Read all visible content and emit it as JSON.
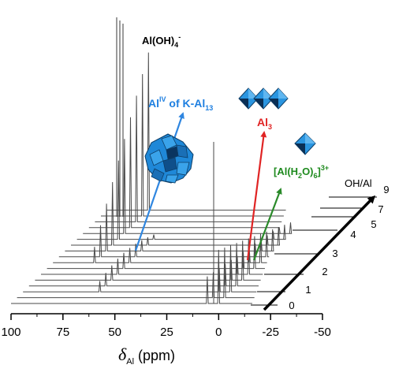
{
  "chart_data": {
    "type": "line",
    "subtype": "stacked-waterfall-nmr-spectra",
    "xlabel": {
      "delta": "δ",
      "subscript": "Al",
      "unit": "(ppm)"
    },
    "xlim": [
      100,
      -50
    ],
    "x_reversed": true,
    "x_ticks": [
      100,
      75,
      50,
      25,
      0,
      -25,
      -50
    ],
    "x_tick_labels": [
      "100",
      "75",
      "50",
      "25",
      "0",
      "-25",
      "-50"
    ],
    "depth_axis_label": "OH/Al",
    "depth_tick_labels": [
      "0",
      "1",
      "2",
      "3",
      "4",
      "5",
      "7",
      "9"
    ],
    "series_count": 17,
    "peaks": [
      {
        "name": "AlOH4",
        "position_ppm": 80.0,
        "present_in_series": [
          0,
          16
        ]
      },
      {
        "name": "AlIV_Al13",
        "position_ppm": 63.0,
        "present_in_series": [
          2,
          11
        ]
      },
      {
        "name": "Al3",
        "position_ppm": 5.5,
        "present_in_series": [
          0,
          12
        ]
      },
      {
        "name": "AlH2O6",
        "position_ppm": 0.0,
        "present_in_series": [
          0,
          12
        ]
      }
    ],
    "annotations": {
      "aloh4": {
        "text": "Al(OH)",
        "sub": "4",
        "sup": "-",
        "color": "#000000"
      },
      "al13": {
        "prefix": "Al",
        "sup": "IV",
        "middle": " of K-Al",
        "sub": "13",
        "color": "#1e7fe0"
      },
      "al3": {
        "text": "Al",
        "sub": "3",
        "color": "#e02424"
      },
      "alh2o6": {
        "text": "[Al(H",
        "sub": "2",
        "mid": "O)",
        "sub2": "6",
        "end": "]",
        "sup": "3+",
        "color": "#1e8a1e"
      }
    },
    "colors": {
      "spectrum": "#4a4a4a",
      "al13_arrow": "#2f86e0",
      "al3_arrow": "#e02424",
      "alh2o6_arrow": "#2a8a2a",
      "depth_arrow": "#000000",
      "polyhedra": "#2a95e0"
    }
  }
}
